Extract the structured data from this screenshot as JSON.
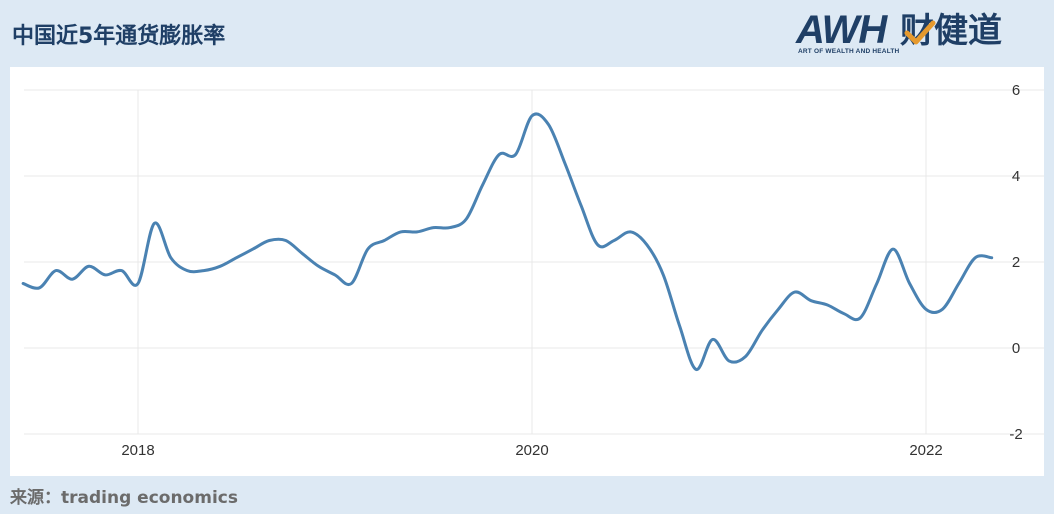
{
  "header": {
    "title": "中国近5年通货膨胀率"
  },
  "logo": {
    "brand": "AWH",
    "chinese": "财健道",
    "tagline": "ART OF WEALTH AND HEALTH",
    "brand_color": "#1f3f66",
    "check_color": "#e69a2e"
  },
  "footer": {
    "source": "来源：trading economics"
  },
  "colors": {
    "background": "#dde9f4",
    "panel": "#ffffff",
    "line": "#4a82b2",
    "grid": "#e8e8e8"
  },
  "chart_data": {
    "type": "line",
    "title": "中国近5年通货膨胀率",
    "xlabel": "",
    "ylabel": "",
    "ylim": [
      -2,
      6
    ],
    "y_ticks": [
      6,
      4,
      2,
      0,
      -2
    ],
    "x_ticks": [
      "2018",
      "2020",
      "2022"
    ],
    "grid": true,
    "y_axis_side": "right",
    "series": [
      {
        "x": [
          "2017-06",
          "2017-07",
          "2017-08",
          "2017-09",
          "2017-10",
          "2017-11",
          "2017-12",
          "2018-01",
          "2018-02",
          "2018-03",
          "2018-04",
          "2018-05",
          "2018-06",
          "2018-07",
          "2018-08",
          "2018-09",
          "2018-10",
          "2018-11",
          "2018-12",
          "2019-01",
          "2019-02",
          "2019-03",
          "2019-04",
          "2019-05",
          "2019-06",
          "2019-07",
          "2019-08",
          "2019-09",
          "2019-10",
          "2019-11",
          "2019-12",
          "2020-01",
          "2020-02",
          "2020-03",
          "2020-04",
          "2020-05",
          "2020-06",
          "2020-07",
          "2020-08",
          "2020-09",
          "2020-10",
          "2020-11",
          "2020-12",
          "2021-01",
          "2021-02",
          "2021-03",
          "2021-04",
          "2021-05",
          "2021-06",
          "2021-07",
          "2021-08",
          "2021-09",
          "2021-10",
          "2021-11",
          "2021-12",
          "2022-01",
          "2022-02",
          "2022-03",
          "2022-04",
          "2022-05"
        ],
        "values": [
          1.5,
          1.4,
          1.8,
          1.6,
          1.9,
          1.7,
          1.8,
          1.5,
          2.9,
          2.1,
          1.8,
          1.8,
          1.9,
          2.1,
          2.3,
          2.5,
          2.5,
          2.2,
          1.9,
          1.7,
          1.5,
          2.3,
          2.5,
          2.7,
          2.7,
          2.8,
          2.8,
          3.0,
          3.8,
          4.5,
          4.5,
          5.4,
          5.2,
          4.3,
          3.3,
          2.4,
          2.5,
          2.7,
          2.4,
          1.7,
          0.5,
          -0.5,
          0.2,
          -0.3,
          -0.2,
          0.4,
          0.9,
          1.3,
          1.1,
          1.0,
          0.8,
          0.7,
          1.5,
          2.3,
          1.5,
          0.9,
          0.9,
          1.5,
          2.1,
          2.1
        ]
      }
    ]
  }
}
